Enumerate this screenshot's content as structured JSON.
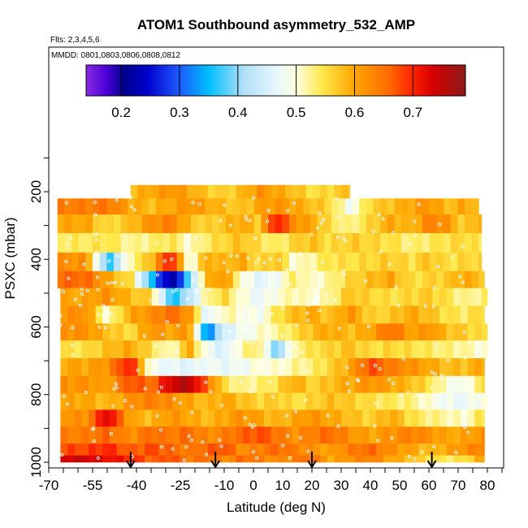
{
  "chart_data": {
    "type": "heatmap",
    "title": "ATOM1 Southbound asymmetry_532_AMP",
    "flights_label": "Flts: 2,3,4,5,6",
    "dates_label": "MMDD: 0801,0803,0806,0808,0812",
    "xlabel": "Latitude (deg N)",
    "ylabel": "PSXC (mbar)",
    "xlim": [
      -70,
      85
    ],
    "ylim": [
      1010,
      90
    ],
    "x_ticks": [
      -70,
      -55,
      -40,
      -25,
      -10,
      0,
      10,
      20,
      30,
      40,
      50,
      60,
      70,
      80
    ],
    "x_tick_labels": [
      "-70",
      "-55",
      "-40",
      "-25",
      "-10",
      "0",
      "10",
      "20",
      "30",
      "40",
      "50",
      "60",
      "70",
      "80"
    ],
    "y_ticks": [
      200,
      400,
      600,
      800,
      1000
    ],
    "y_tick_labels": [
      "200",
      "400",
      "600",
      "800",
      "1000"
    ],
    "colorbar": {
      "range": [
        0.14,
        0.79
      ],
      "ticks": [
        0.2,
        0.3,
        0.4,
        0.5,
        0.6,
        0.7
      ],
      "tick_labels": [
        "0.2",
        "0.3",
        "0.4",
        "0.5",
        "0.6",
        "0.7"
      ],
      "stops": [
        {
          "v": 0.14,
          "c": "#8a2be2"
        },
        {
          "v": 0.175,
          "c": "#4b00d8"
        },
        {
          "v": 0.205,
          "c": "#00008b"
        },
        {
          "v": 0.245,
          "c": "#0000cd"
        },
        {
          "v": 0.3,
          "c": "#1e5aff"
        },
        {
          "v": 0.35,
          "c": "#00bfff"
        },
        {
          "v": 0.41,
          "c": "#b0e0f8"
        },
        {
          "v": 0.465,
          "c": "#e6f7ff"
        },
        {
          "v": 0.5,
          "c": "#ffffe0"
        },
        {
          "v": 0.545,
          "c": "#ffe84a"
        },
        {
          "v": 0.6,
          "c": "#ffa500"
        },
        {
          "v": 0.66,
          "c": "#ff6a00"
        },
        {
          "v": 0.7,
          "c": "#ff2000"
        },
        {
          "v": 0.735,
          "c": "#d40000"
        },
        {
          "v": 0.79,
          "c": "#8b1a1a"
        }
      ]
    },
    "row_centers_mbar": [
      200,
      240,
      295,
      350,
      410,
      460,
      510,
      565,
      615,
      665,
      720,
      770,
      820,
      870,
      920,
      970,
      990
    ],
    "segments_lon": [
      -57,
      -50,
      -42,
      -35,
      -28,
      -22,
      -16,
      -10,
      -4,
      2,
      8,
      14,
      20,
      26,
      33,
      40,
      47,
      54,
      60,
      66,
      72,
      78
    ],
    "rows": [
      {
        "p": 200,
        "x0": -42,
        "x1": 33,
        "v": [
          0.62,
          0.6,
          0.58,
          0.6,
          0.62,
          0.6,
          0.57,
          0.56,
          0.58,
          0.62,
          0.6,
          0.58,
          0.55,
          0.56,
          0.58,
          0.58,
          0.58,
          0.58,
          0.58,
          0.58,
          0.58,
          0.58
        ]
      },
      {
        "p": 240,
        "x0": -67,
        "x1": 77,
        "v": [
          0.64,
          0.65,
          0.6,
          0.58,
          0.6,
          0.62,
          0.6,
          0.58,
          0.57,
          0.6,
          0.62,
          0.6,
          0.58,
          0.56,
          0.48,
          0.56,
          0.58,
          0.6,
          0.62,
          0.58,
          0.6,
          0.58
        ]
      },
      {
        "p": 295,
        "x0": -67,
        "x1": 78,
        "v": [
          0.6,
          0.55,
          0.58,
          0.62,
          0.64,
          0.58,
          0.56,
          0.58,
          0.6,
          0.57,
          0.72,
          0.62,
          0.6,
          0.55,
          0.52,
          0.56,
          0.6,
          0.58,
          0.64,
          0.62,
          0.56,
          0.6
        ]
      },
      {
        "p": 350,
        "x0": -67,
        "x1": 78,
        "v": [
          0.54,
          0.55,
          0.52,
          0.53,
          0.55,
          0.5,
          0.54,
          0.56,
          0.58,
          0.55,
          0.53,
          0.56,
          0.58,
          0.55,
          0.57,
          0.56,
          0.55,
          0.53,
          0.54,
          0.55,
          0.56,
          0.54
        ]
      },
      {
        "p": 410,
        "x0": -67,
        "x1": 78,
        "v": [
          0.62,
          0.35,
          0.52,
          0.58,
          0.72,
          0.48,
          0.6,
          0.58,
          0.6,
          0.55,
          0.58,
          0.5,
          0.52,
          0.55,
          0.55,
          0.56,
          0.57,
          0.55,
          0.58,
          0.55,
          0.56,
          0.56
        ]
      },
      {
        "p": 460,
        "x0": -67,
        "x1": 79,
        "v": [
          0.66,
          0.6,
          0.55,
          0.35,
          0.2,
          0.38,
          0.58,
          0.62,
          0.5,
          0.46,
          0.48,
          0.54,
          0.5,
          0.52,
          0.56,
          0.58,
          0.6,
          0.55,
          0.56,
          0.57,
          0.6,
          0.58
        ]
      },
      {
        "p": 510,
        "x0": -66,
        "x1": 80,
        "v": [
          0.6,
          0.62,
          0.58,
          0.56,
          0.35,
          0.42,
          0.52,
          0.56,
          0.5,
          0.47,
          0.5,
          0.52,
          0.5,
          0.52,
          0.58,
          0.56,
          0.55,
          0.56,
          0.57,
          0.55,
          0.52,
          0.53
        ]
      },
      {
        "p": 565,
        "x0": -66,
        "x1": 79,
        "v": [
          0.62,
          0.5,
          0.6,
          0.62,
          0.66,
          0.62,
          0.45,
          0.52,
          0.5,
          0.48,
          0.55,
          0.58,
          0.6,
          0.57,
          0.62,
          0.56,
          0.57,
          0.6,
          0.58,
          0.55,
          0.54,
          0.56
        ]
      },
      {
        "p": 615,
        "x0": -66,
        "x1": 80,
        "v": [
          0.62,
          0.58,
          0.55,
          0.62,
          0.6,
          0.62,
          0.3,
          0.45,
          0.48,
          0.5,
          0.52,
          0.55,
          0.58,
          0.6,
          0.58,
          0.6,
          0.66,
          0.6,
          0.62,
          0.58,
          0.57,
          0.55
        ]
      },
      {
        "p": 665,
        "x0": -66,
        "x1": 80,
        "v": [
          0.55,
          0.58,
          0.6,
          0.55,
          0.5,
          0.6,
          0.48,
          0.45,
          0.52,
          0.54,
          0.38,
          0.52,
          0.55,
          0.56,
          0.58,
          0.55,
          0.56,
          0.55,
          0.54,
          0.53,
          0.52,
          0.5
        ]
      },
      {
        "p": 720,
        "x0": -66,
        "x1": 79,
        "v": [
          0.6,
          0.62,
          0.72,
          0.48,
          0.47,
          0.46,
          0.48,
          0.47,
          0.48,
          0.5,
          0.5,
          0.52,
          0.53,
          0.56,
          0.6,
          0.68,
          0.64,
          0.62,
          0.6,
          0.58,
          0.58,
          0.6
        ]
      },
      {
        "p": 770,
        "x0": -66,
        "x1": 79,
        "v": [
          0.62,
          0.6,
          0.68,
          0.65,
          0.74,
          0.76,
          0.66,
          0.55,
          0.52,
          0.53,
          0.55,
          0.6,
          0.56,
          0.58,
          0.6,
          0.62,
          0.6,
          0.58,
          0.55,
          0.5,
          0.48,
          0.55
        ]
      },
      {
        "p": 820,
        "x0": -66,
        "x1": 80,
        "v": [
          0.6,
          0.58,
          0.62,
          0.64,
          0.62,
          0.6,
          0.58,
          0.6,
          0.58,
          0.56,
          0.57,
          0.55,
          0.56,
          0.58,
          0.57,
          0.55,
          0.54,
          0.53,
          0.5,
          0.48,
          0.47,
          0.5
        ]
      },
      {
        "p": 870,
        "x0": -66,
        "x1": 79,
        "v": [
          0.62,
          0.74,
          0.6,
          0.58,
          0.62,
          0.6,
          0.58,
          0.6,
          0.62,
          0.6,
          0.58,
          0.6,
          0.62,
          0.6,
          0.58,
          0.56,
          0.6,
          0.55,
          0.53,
          0.52,
          0.5,
          0.55
        ]
      },
      {
        "p": 920,
        "x0": -66,
        "x1": 79,
        "v": [
          0.64,
          0.66,
          0.62,
          0.66,
          0.64,
          0.66,
          0.62,
          0.64,
          0.66,
          0.68,
          0.65,
          0.62,
          0.64,
          0.66,
          0.62,
          0.6,
          0.62,
          0.64,
          0.62,
          0.6,
          0.6,
          0.62
        ]
      },
      {
        "p": 970,
        "x0": -66,
        "x1": 79,
        "v": [
          0.68,
          0.7,
          0.66,
          0.68,
          0.66,
          0.64,
          0.66,
          0.68,
          0.62,
          0.64,
          0.66,
          0.64,
          0.62,
          0.6,
          0.64,
          0.66,
          0.62,
          0.6,
          0.58,
          0.6,
          0.62,
          0.64
        ]
      },
      {
        "p": 990,
        "x0": -66,
        "x1": 79,
        "v": [
          0.74,
          0.72,
          0.7,
          0.66,
          0.68,
          0.64,
          0.66,
          0.62,
          0.66,
          0.64,
          0.62,
          0.64,
          0.66,
          0.6,
          0.62,
          0.64,
          0.6,
          0.58,
          0.55,
          0.54,
          0.55,
          0.6
        ]
      }
    ],
    "arrow_latitudes": [
      -42,
      -13,
      20,
      61
    ]
  }
}
